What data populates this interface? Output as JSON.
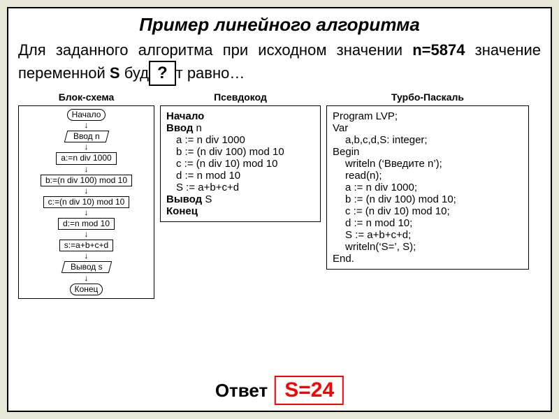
{
  "title": "Пример линейного алгоритма",
  "description_parts": {
    "p1": "Для заданного алгоритма при исходном значении ",
    "b1": "n=5874",
    "p2": " значение переменной ",
    "b2": " S ",
    "p3": "буд",
    "p4": "т равно…"
  },
  "qmark": "?",
  "headers": {
    "flowchart": "Блок-схема",
    "pseudo": "Псевдокод",
    "pascal": "Турбо-Паскаль"
  },
  "flowchart": {
    "type": "flowchart",
    "node_border_color": "#000000",
    "node_bg_color": "#ffffff",
    "font_size_pt": 12,
    "arrow_glyph": "↓",
    "nodes": [
      {
        "shape": "terminal",
        "text": "Начало"
      },
      {
        "shape": "io",
        "text": "Ввод n"
      },
      {
        "shape": "process",
        "text": "a:=n div 1000"
      },
      {
        "shape": "process",
        "text": "b:=(n div 100) mod 10"
      },
      {
        "shape": "process",
        "text": "c:=(n div 10) mod 10"
      },
      {
        "shape": "process",
        "text": "d:=n mod 10"
      },
      {
        "shape": "process",
        "text": "s:=a+b+c+d"
      },
      {
        "shape": "io",
        "text": "Вывод s"
      },
      {
        "shape": "terminal",
        "text": "Конец"
      }
    ]
  },
  "pseudocode": {
    "lines": [
      {
        "bold": true,
        "indent": 0,
        "text": "Начало"
      },
      {
        "bold": false,
        "indent": 0,
        "prefix_bold": "Ввод",
        "suffix": " n"
      },
      {
        "bold": false,
        "indent": 1,
        "text": "a := n div 1000"
      },
      {
        "bold": false,
        "indent": 1,
        "text": "b := (n div 100) mod 10"
      },
      {
        "bold": false,
        "indent": 1,
        "text": "c := (n div 10) mod 10"
      },
      {
        "bold": false,
        "indent": 1,
        "text": "d := n mod 10"
      },
      {
        "bold": false,
        "indent": 1,
        "text": "S := a+b+c+d"
      },
      {
        "bold": false,
        "indent": 0,
        "prefix_bold": "Вывод",
        "suffix": " S"
      },
      {
        "bold": true,
        "indent": 0,
        "text": "Конец"
      }
    ]
  },
  "pascal": {
    "lines": [
      {
        "indent": 0,
        "text": "Program LVP;"
      },
      {
        "indent": 0,
        "text": "Var"
      },
      {
        "indent": 1,
        "text": "a,b,c,d,S: integer;"
      },
      {
        "indent": 0,
        "text": "Begin"
      },
      {
        "indent": 1,
        "text": "writeln (‘Введите n’);"
      },
      {
        "indent": 1,
        "text": "read(n);"
      },
      {
        "indent": 1,
        "text": "a := n div 1000;"
      },
      {
        "indent": 1,
        "text": "b := (n div 100) mod 10;"
      },
      {
        "indent": 1,
        "text": "c := (n div 10) mod 10;"
      },
      {
        "indent": 1,
        "text": "d := n mod 10;"
      },
      {
        "indent": 1,
        "text": "S := a+b+c+d;"
      },
      {
        "indent": 1,
        "text": "writeln(‘S=’, S);"
      },
      {
        "indent": 0,
        "text": "End."
      }
    ]
  },
  "answer": {
    "label": "Ответ",
    "value": "S=24",
    "box_border_color": "#ff0000",
    "text_color": "#ff0000"
  }
}
